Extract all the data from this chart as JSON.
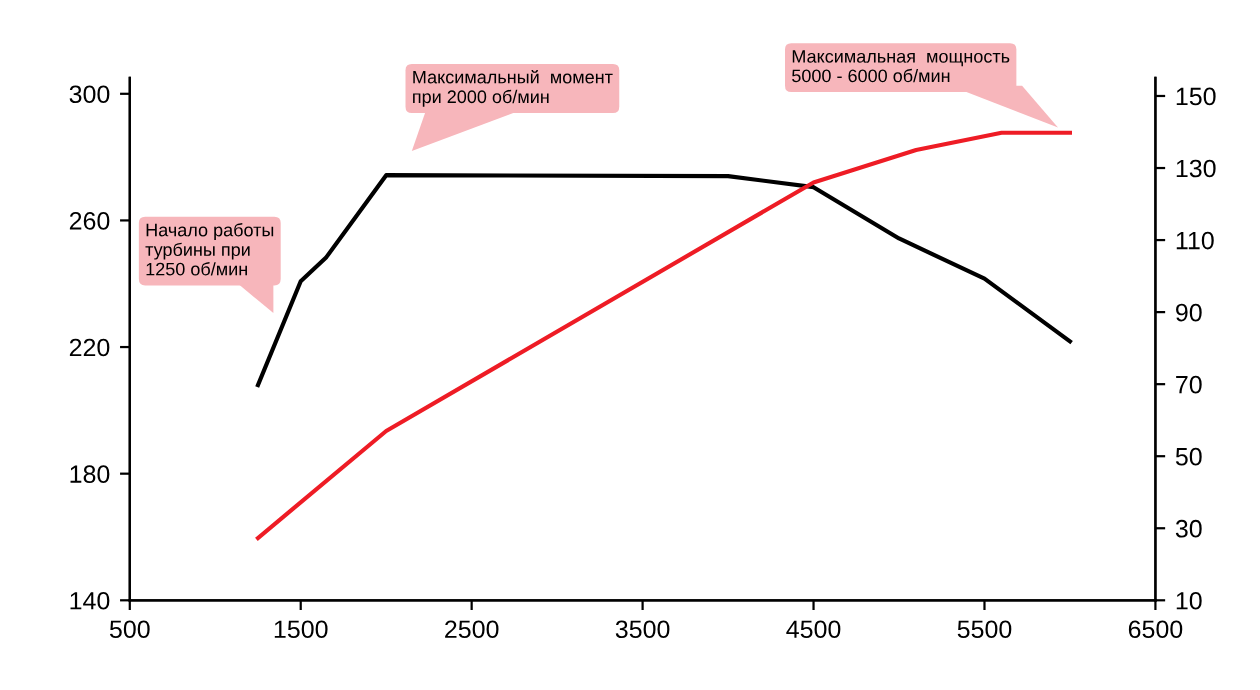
{
  "chart_data": {
    "type": "line",
    "x": [
      1250,
      1500,
      1650,
      2000,
      4000,
      4500,
      5000,
      5500,
      6000
    ],
    "series": [
      {
        "color": "#000000",
        "values": [
          208,
          240.8,
          248.4,
          274.3,
          274,
          270.5,
          254.3,
          241.6,
          221.8
        ]
      },
      {
        "color": "#ee1c25",
        "axis": "y2",
        "x": [
          1250,
          2000,
          4500,
          5100,
          5600,
          6000
        ],
        "values": [
          27.3,
          57,
          126,
          135,
          139.8,
          139.8
        ]
      }
    ],
    "xlim": [
      500,
      6500
    ],
    "xticks": [
      500,
      1500,
      2500,
      3500,
      4500,
      5500,
      6500
    ],
    "ylim": [
      140,
      305
    ],
    "yticks": [
      140,
      180,
      220,
      260,
      300
    ],
    "y2lim": [
      10,
      155
    ],
    "y2ticks": [
      10,
      30,
      50,
      70,
      90,
      110,
      130,
      150
    ],
    "annotations": [
      "Начало работы\nтурбины при\n1250 об/мин",
      "Максимальный  момент\nпри 2000 об/мин",
      "Максимальная  мощность\n5000 - 6000 об/мин"
    ],
    "grid": false,
    "legend": false,
    "marker": "none",
    "line_style": "solid"
  }
}
